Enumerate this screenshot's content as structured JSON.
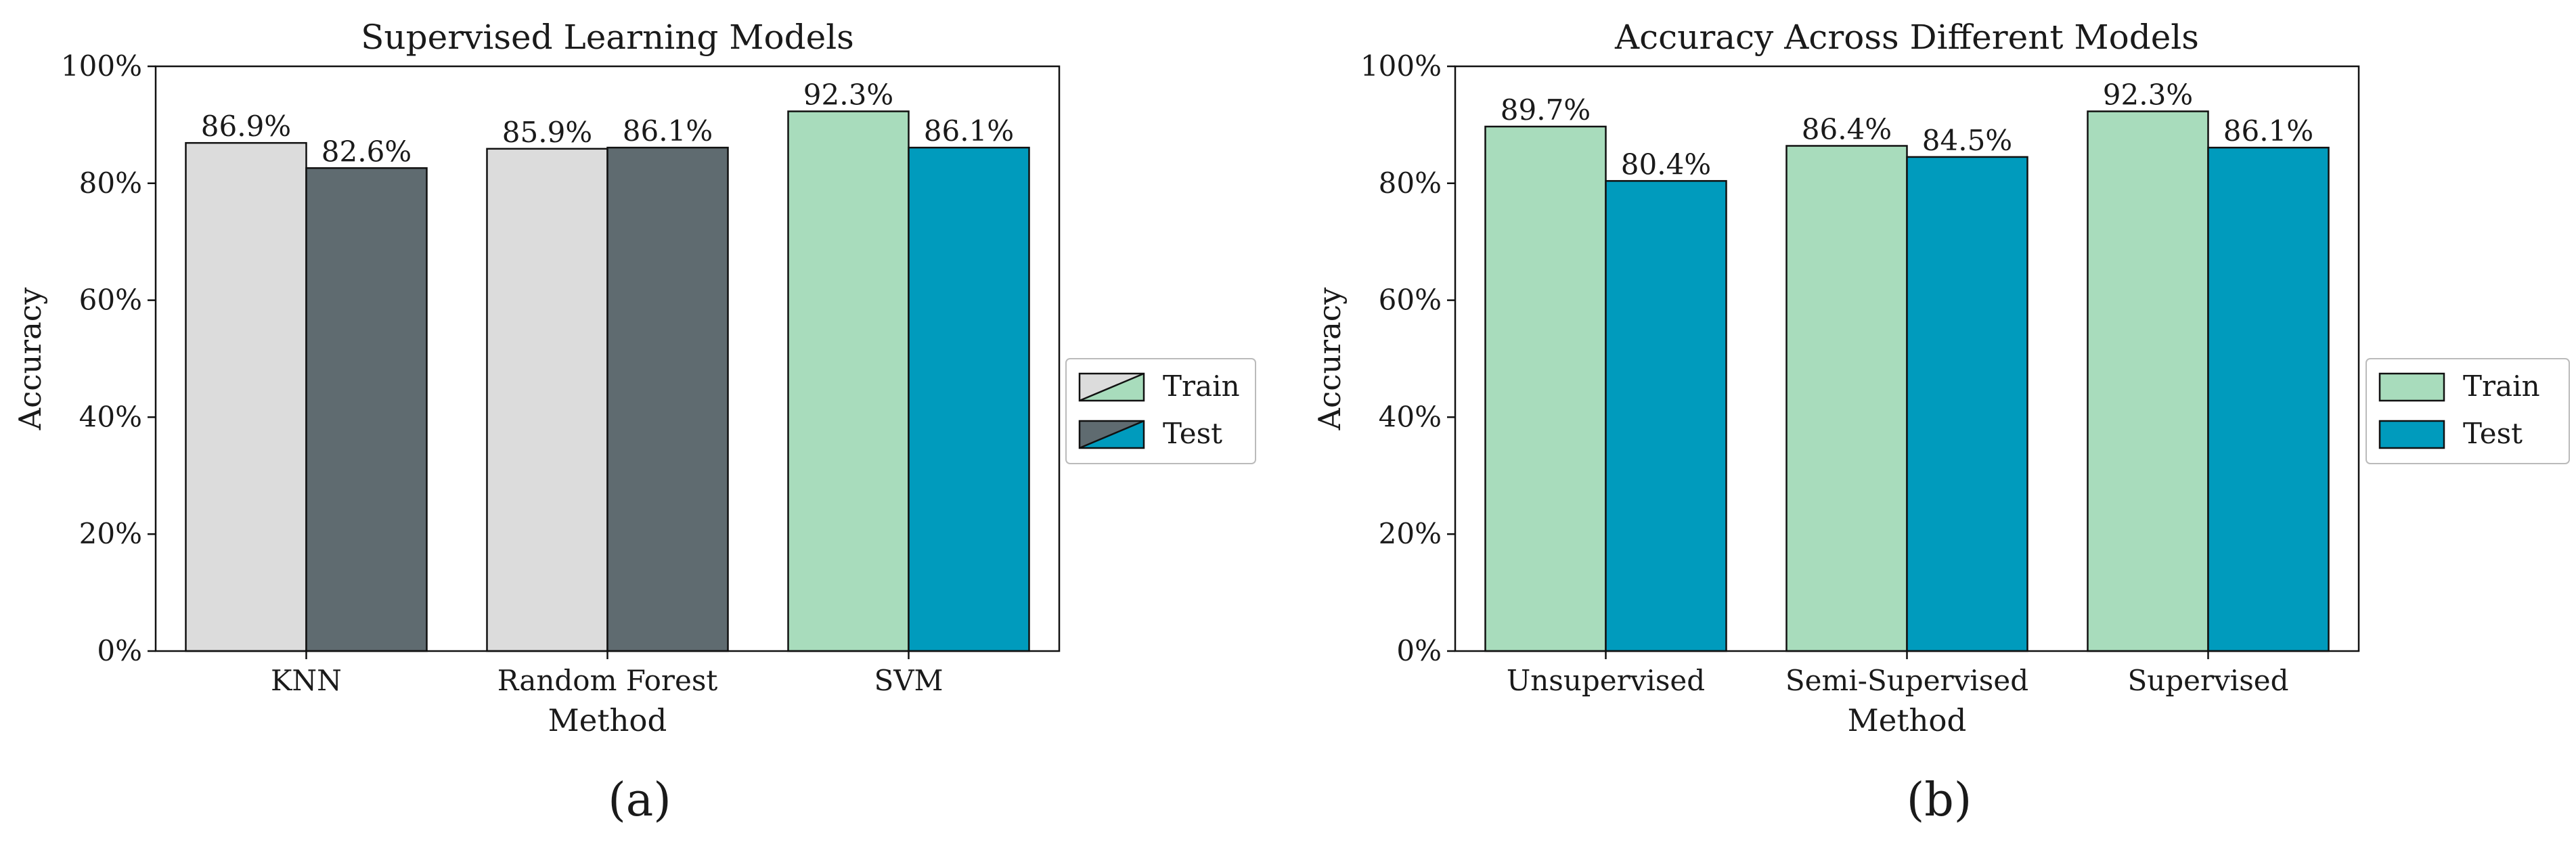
{
  "chart_data": [
    {
      "type": "bar",
      "title": "Supervised Learning Models",
      "xlabel": "Method",
      "ylabel": "Accuracy",
      "ylim": [
        0,
        100
      ],
      "yticks": [
        "0%",
        "20%",
        "40%",
        "60%",
        "80%",
        "100%"
      ],
      "yvalues": [
        0,
        20,
        40,
        60,
        80,
        100
      ],
      "categories": [
        "KNN",
        "Random Forest",
        "SVM"
      ],
      "series": [
        {
          "name": "Train",
          "values": [
            86.9,
            85.9,
            92.3
          ],
          "labels": [
            "86.9%",
            "85.9%",
            "92.3%"
          ],
          "colors": [
            "#dcdcdc",
            "#dcdcdc",
            "#a8dcbc"
          ]
        },
        {
          "name": "Test",
          "values": [
            82.6,
            86.1,
            86.1
          ],
          "labels": [
            "82.6%",
            "86.1%",
            "86.1%"
          ],
          "colors": [
            "#5f6b70",
            "#5f6b70",
            "#009bbd"
          ]
        }
      ],
      "legend": {
        "position": "right",
        "style": "split-diagonal",
        "entries": [
          {
            "label": "Train",
            "color_a": "#dcdcdc",
            "color_b": "#a8dcbc"
          },
          {
            "label": "Test",
            "color_a": "#5f6b70",
            "color_b": "#009bbd"
          }
        ]
      },
      "caption": "(a)"
    },
    {
      "type": "bar",
      "title": "Accuracy Across Different Models",
      "xlabel": "Method",
      "ylabel": "Accuracy",
      "ylim": [
        0,
        100
      ],
      "yticks": [
        "0%",
        "20%",
        "40%",
        "60%",
        "80%",
        "100%"
      ],
      "yvalues": [
        0,
        20,
        40,
        60,
        80,
        100
      ],
      "categories": [
        "Unsupervised",
        "Semi-Supervised",
        "Supervised"
      ],
      "series": [
        {
          "name": "Train",
          "values": [
            89.7,
            86.4,
            92.3
          ],
          "labels": [
            "89.7%",
            "86.4%",
            "92.3%"
          ],
          "colors": [
            "#a8dcbc",
            "#a8dcbc",
            "#a8dcbc"
          ]
        },
        {
          "name": "Test",
          "values": [
            80.4,
            84.5,
            86.1
          ],
          "labels": [
            "80.4%",
            "84.5%",
            "86.1%"
          ],
          "colors": [
            "#009bbd",
            "#009bbd",
            "#009bbd"
          ]
        }
      ],
      "legend": {
        "position": "right",
        "style": "solid",
        "entries": [
          {
            "label": "Train",
            "color_a": "#a8dcbc",
            "color_b": "#a8dcbc"
          },
          {
            "label": "Test",
            "color_a": "#009bbd",
            "color_b": "#009bbd"
          }
        ]
      },
      "caption": "(b)"
    }
  ]
}
